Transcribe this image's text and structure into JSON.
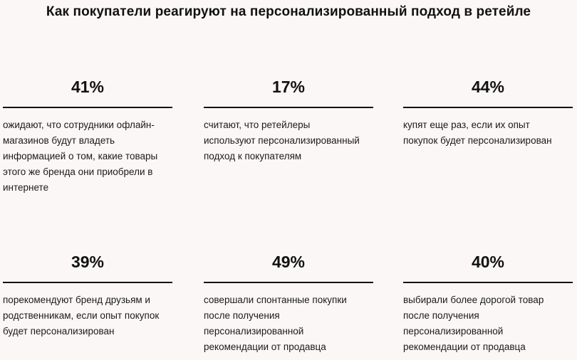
{
  "title": "Как покупатели реагируют на персонализированный подход в ретейле",
  "stats": [
    {
      "value": "41%",
      "lines": [
        "ожидают, что сотрудники офлайн-",
        "магазинов будут владеть",
        "информацией о том, какие товары",
        "этого же бренда они приобрели в",
        "интернете"
      ]
    },
    {
      "value": "17%",
      "lines": [
        "считают, что ретейлеры",
        "используют персонализированный",
        "подход к покупателям"
      ]
    },
    {
      "value": "44%",
      "lines": [
        "купят еще раз, если их опыт",
        "покупок будет персонализирован"
      ]
    },
    {
      "value": "39%",
      "lines": [
        "порекомендуют бренд друзьям и",
        "родственникам, если опыт покупок",
        "будет персонализирован"
      ]
    },
    {
      "value": "49%",
      "lines": [
        "совершали спонтанные покупки",
        "после получения",
        "персонализированной",
        "рекомендации от продавца"
      ]
    },
    {
      "value": "40%",
      "lines": [
        "выбирали более дорогой товар",
        "после получения",
        "персонализированной",
        "рекомендации от продавца"
      ]
    }
  ]
}
